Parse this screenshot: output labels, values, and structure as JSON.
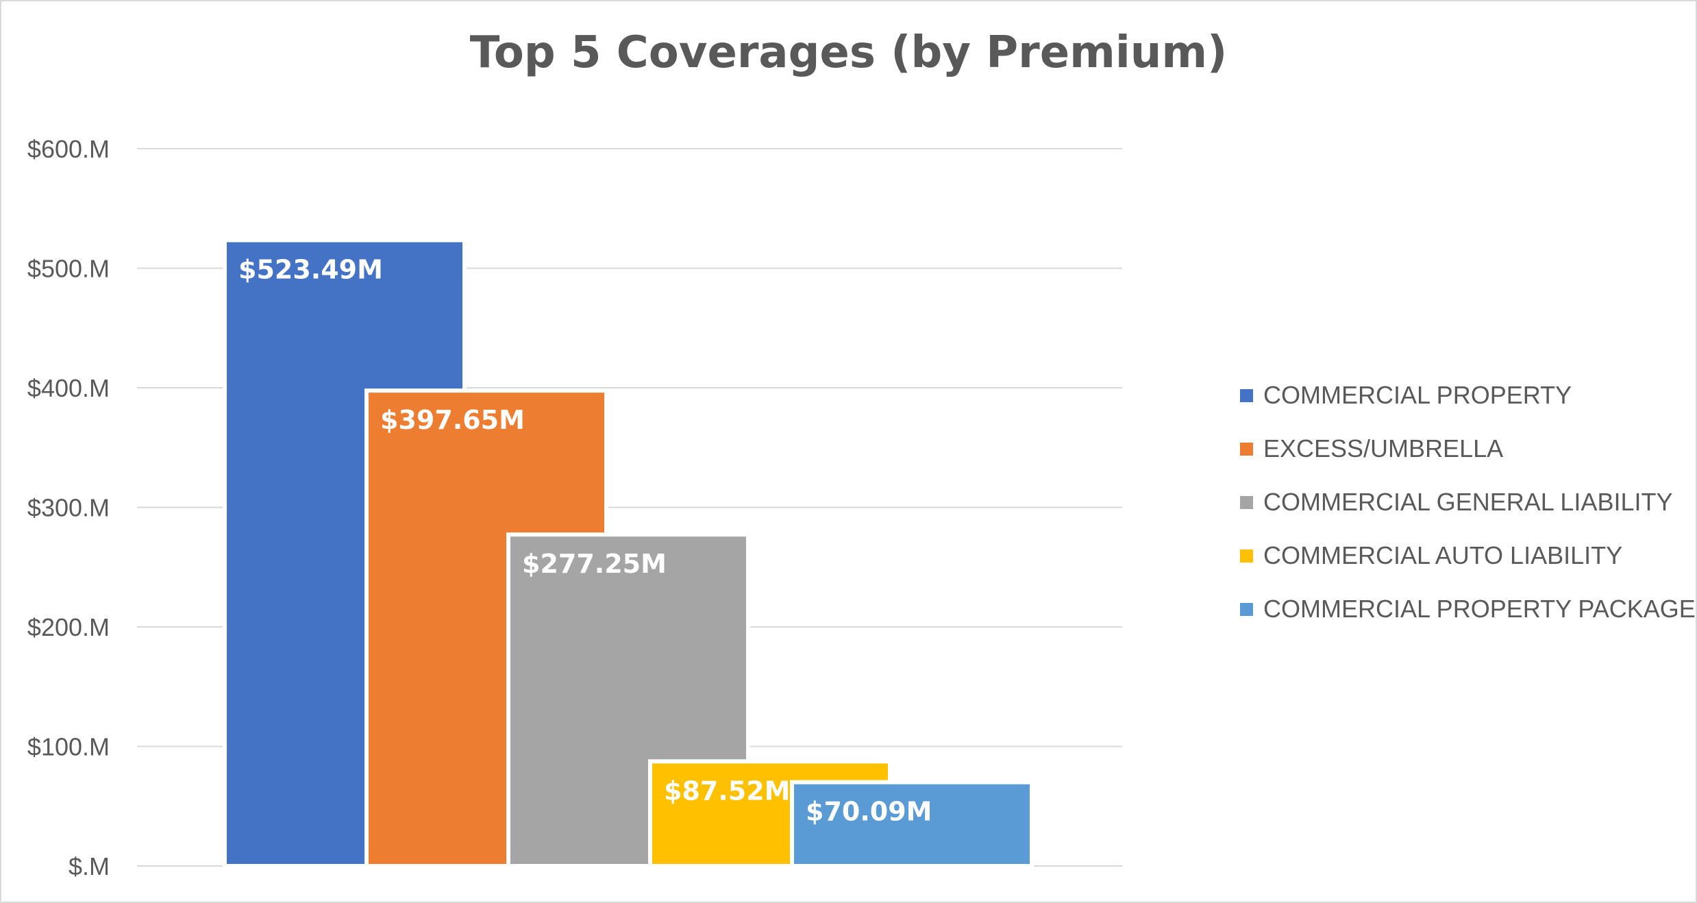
{
  "chart_data": {
    "type": "bar",
    "title": "Top 5 Coverages (by Premium)",
    "xlabel": "",
    "ylabel": "",
    "ylim": [
      0,
      600
    ],
    "yticks": [
      {
        "value": 0,
        "label": "$.M"
      },
      {
        "value": 100,
        "label": "$100.M"
      },
      {
        "value": 200,
        "label": "$200.M"
      },
      {
        "value": 300,
        "label": "$300.M"
      },
      {
        "value": 400,
        "label": "$400.M"
      },
      {
        "value": 500,
        "label": "$500.M"
      },
      {
        "value": 600,
        "label": "$600.M"
      }
    ],
    "grid": true,
    "legend_position": "right",
    "series": [
      {
        "name": "COMMERCIAL PROPERTY",
        "value": 523.49,
        "label": "$523.49M",
        "color": "#4472C4"
      },
      {
        "name": "EXCESS/UMBRELLA",
        "value": 397.65,
        "label": "$397.65M",
        "color": "#ED7D31"
      },
      {
        "name": "COMMERCIAL GENERAL LIABILITY",
        "value": 277.25,
        "label": "$277.25M",
        "color": "#A5A5A5"
      },
      {
        "name": "COMMERCIAL AUTO LIABILITY",
        "value": 87.52,
        "label": "$87.52M",
        "color": "#FFC000"
      },
      {
        "name": "COMMERCIAL PROPERTY PACKAGE",
        "value": 70.09,
        "label": "$70.09M",
        "color": "#5B9BD5"
      }
    ]
  }
}
